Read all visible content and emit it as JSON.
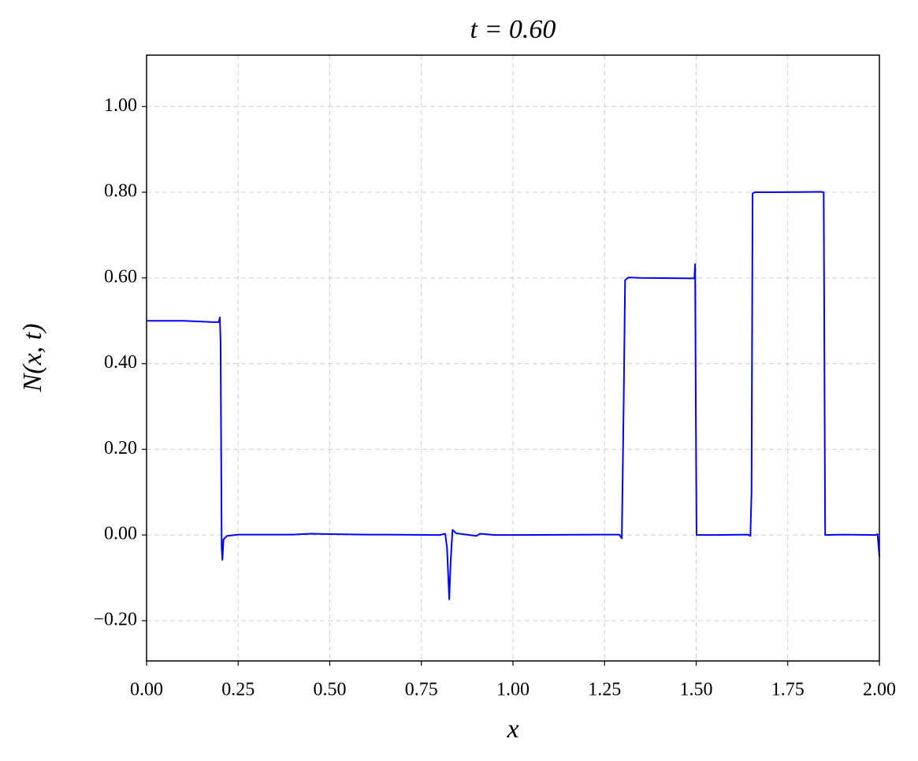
{
  "chart_data": {
    "type": "line",
    "title": "t = 0.60",
    "x_label": "x",
    "y_label": "N(x, t)",
    "x": [
      0,
      0.1,
      0.18,
      0.197,
      0.2,
      0.202,
      0.205,
      0.207,
      0.21,
      0.22,
      0.25,
      0.4,
      0.45,
      0.5,
      0.6,
      0.65,
      0.8,
      0.815,
      0.82,
      0.826,
      0.83,
      0.835,
      0.845,
      0.9,
      0.91,
      0.95,
      1.0,
      1.29,
      1.297,
      1.302,
      1.306,
      1.315,
      1.35,
      1.495,
      1.497,
      1.499,
      1.501,
      1.55,
      1.64,
      1.648,
      1.651,
      1.654,
      1.66,
      1.7,
      1.84,
      1.848,
      1.852,
      1.9,
      1.99,
      1.995,
      2.0
    ],
    "series": [
      {
        "name": "N",
        "color": "#0000ff",
        "values": [
          0.5,
          0.5,
          0.497,
          0.497,
          0.508,
          0.45,
          -0.03,
          -0.058,
          -0.01,
          -0.002,
          0.001,
          0.001,
          0.003,
          0.002,
          0.001,
          0.001,
          0.0,
          0.003,
          -0.03,
          -0.15,
          -0.06,
          0.012,
          0.004,
          -0.002,
          0.003,
          0.0,
          0.0,
          0.001,
          -0.008,
          0.3,
          0.595,
          0.601,
          0.6,
          0.599,
          0.632,
          0.3,
          0.0,
          0.0,
          0.001,
          -0.002,
          0.1,
          0.797,
          0.8,
          0.8,
          0.801,
          0.8,
          0.0,
          0.001,
          0.0,
          0.002,
          -0.05
        ]
      }
    ],
    "xlim": [
      0,
      2
    ],
    "ylim": [
      -0.294,
      1.12
    ],
    "xticks": [
      {
        "value": 0,
        "label": "0.00"
      },
      {
        "value": 0.25,
        "label": "0.25"
      },
      {
        "value": 0.5,
        "label": "0.50"
      },
      {
        "value": 0.75,
        "label": "0.75"
      },
      {
        "value": 1,
        "label": "1.00"
      },
      {
        "value": 1.25,
        "label": "1.25"
      },
      {
        "value": 1.5,
        "label": "1.50"
      },
      {
        "value": 1.75,
        "label": "1.75"
      },
      {
        "value": 2,
        "label": "2.00"
      }
    ],
    "yticks": [
      {
        "value": -0.2,
        "label": "−0.20"
      },
      {
        "value": 0,
        "label": "0.00"
      },
      {
        "value": 0.2,
        "label": "0.20"
      },
      {
        "value": 0.4,
        "label": "0.40"
      },
      {
        "value": 0.6,
        "label": "0.60"
      },
      {
        "value": 0.8,
        "label": "0.80"
      },
      {
        "value": 1,
        "label": "1.00"
      }
    ],
    "grid": true
  }
}
